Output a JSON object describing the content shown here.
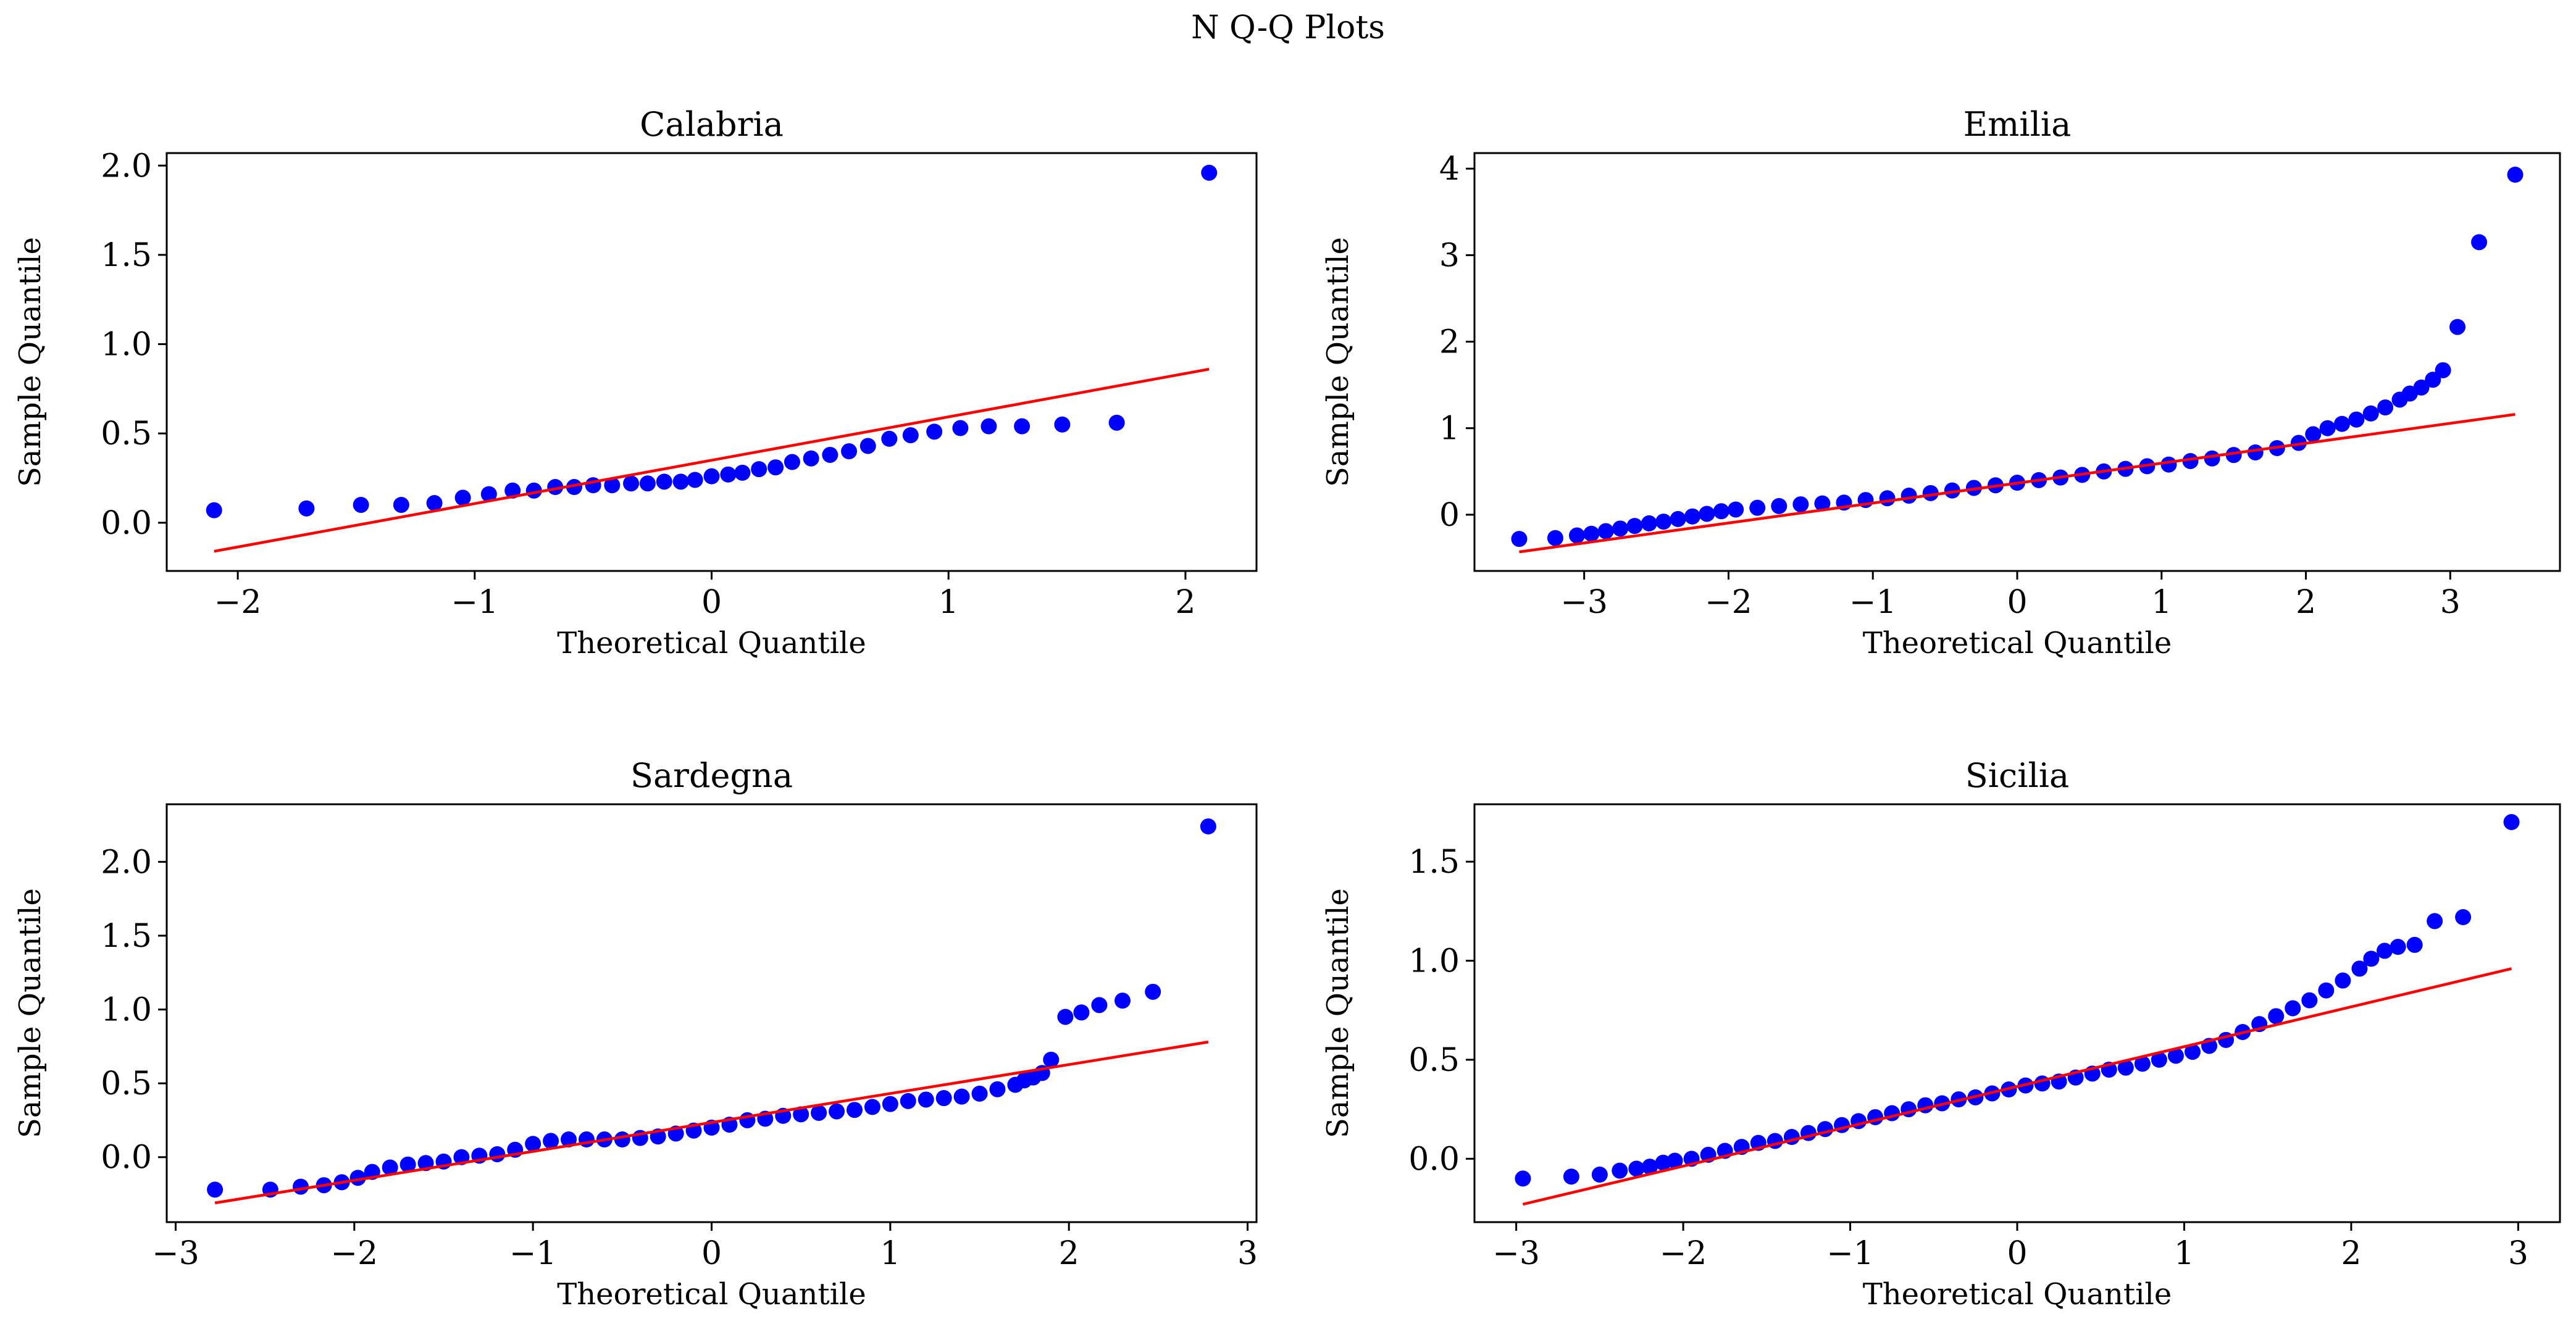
{
  "figure": {
    "title": "N Q-Q Plots",
    "point_color": "#0000ff",
    "line_color": "#ff0000"
  },
  "chart_data": [
    {
      "type": "scatter",
      "title": "Calabria",
      "xlabel": "Theoretical Quantile",
      "ylabel": "Sample Quantile",
      "xlim": [
        -2.3,
        2.3
      ],
      "ylim": [
        -0.27,
        2.07
      ],
      "xticks": [
        -2,
        -1,
        0,
        1,
        2
      ],
      "yticks": [
        0.0,
        0.5,
        1.0,
        1.5,
        2.0
      ],
      "xtick_labels": [
        "−2",
        "−1",
        "0",
        "1",
        "2"
      ],
      "ytick_labels": [
        "0.0",
        "0.5",
        "1.0",
        "1.5",
        "2.0"
      ],
      "reference_line": {
        "x": [
          -2.1,
          2.1
        ],
        "y": [
          -0.16,
          0.86
        ]
      },
      "x": [
        -2.1,
        -1.71,
        -1.48,
        -1.31,
        -1.17,
        -1.05,
        -0.94,
        -0.84,
        -0.75,
        -0.66,
        -0.58,
        -0.5,
        -0.42,
        -0.34,
        -0.27,
        -0.2,
        -0.13,
        -0.07,
        0.0,
        0.07,
        0.13,
        0.2,
        0.27,
        0.34,
        0.42,
        0.5,
        0.58,
        0.66,
        0.75,
        0.84,
        0.94,
        1.05,
        1.17,
        1.31,
        1.48,
        1.71,
        2.1
      ],
      "y": [
        0.07,
        0.08,
        0.1,
        0.1,
        0.11,
        0.14,
        0.16,
        0.18,
        0.18,
        0.2,
        0.2,
        0.21,
        0.21,
        0.22,
        0.22,
        0.23,
        0.23,
        0.24,
        0.26,
        0.27,
        0.28,
        0.3,
        0.31,
        0.34,
        0.36,
        0.38,
        0.4,
        0.43,
        0.47,
        0.49,
        0.51,
        0.53,
        0.54,
        0.54,
        0.55,
        0.56,
        1.96
      ]
    },
    {
      "type": "scatter",
      "title": "Emilia",
      "xlabel": "Theoretical Quantile",
      "ylabel": "Sample Quantile",
      "xlim": [
        -3.76,
        3.76
      ],
      "ylim": [
        -0.65,
        4.18
      ],
      "xticks": [
        -3,
        -2,
        -1,
        0,
        1,
        2,
        3
      ],
      "yticks": [
        0,
        1,
        2,
        3,
        4
      ],
      "xtick_labels": [
        "−3",
        "−2",
        "−1",
        "0",
        "1",
        "2",
        "3"
      ],
      "ytick_labels": [
        "0",
        "1",
        "2",
        "3",
        "4"
      ],
      "reference_line": {
        "x": [
          -3.45,
          3.45
        ],
        "y": [
          -0.43,
          1.16
        ]
      },
      "x": [
        -3.45,
        -3.2,
        -3.05,
        -2.95,
        -2.85,
        -2.75,
        -2.65,
        -2.55,
        -2.45,
        -2.35,
        -2.25,
        -2.15,
        -2.05,
        -1.95,
        -1.8,
        -1.65,
        -1.5,
        -1.35,
        -1.2,
        -1.05,
        -0.9,
        -0.75,
        -0.6,
        -0.45,
        -0.3,
        -0.15,
        0.0,
        0.15,
        0.3,
        0.45,
        0.6,
        0.75,
        0.9,
        1.05,
        1.2,
        1.35,
        1.5,
        1.65,
        1.8,
        1.95,
        2.05,
        2.15,
        2.25,
        2.35,
        2.45,
        2.55,
        2.65,
        2.72,
        2.8,
        2.88,
        2.95,
        3.05,
        3.2,
        3.45
      ],
      "y": [
        -0.28,
        -0.27,
        -0.24,
        -0.22,
        -0.19,
        -0.16,
        -0.13,
        -0.1,
        -0.08,
        -0.05,
        -0.02,
        0.01,
        0.04,
        0.06,
        0.08,
        0.1,
        0.12,
        0.13,
        0.14,
        0.17,
        0.19,
        0.22,
        0.25,
        0.28,
        0.31,
        0.34,
        0.37,
        0.4,
        0.43,
        0.46,
        0.5,
        0.53,
        0.56,
        0.58,
        0.62,
        0.65,
        0.69,
        0.72,
        0.77,
        0.83,
        0.93,
        1.0,
        1.05,
        1.1,
        1.17,
        1.24,
        1.33,
        1.4,
        1.47,
        1.56,
        1.67,
        2.17,
        3.15,
        3.93
      ]
    },
    {
      "type": "scatter",
      "title": "Sardegna",
      "xlabel": "Theoretical Quantile",
      "ylabel": "Sample Quantile",
      "xlim": [
        -3.05,
        3.05
      ],
      "ylim": [
        -0.44,
        2.39
      ],
      "xticks": [
        -3,
        -2,
        -1,
        0,
        1,
        2,
        3
      ],
      "yticks": [
        0.0,
        0.5,
        1.0,
        1.5,
        2.0
      ],
      "xtick_labels": [
        "−3",
        "−2",
        "−1",
        "0",
        "1",
        "2",
        "3"
      ],
      "ytick_labels": [
        "0.0",
        "0.5",
        "1.0",
        "1.5",
        "2.0"
      ],
      "reference_line": {
        "x": [
          -2.78,
          2.78
        ],
        "y": [
          -0.31,
          0.78
        ]
      },
      "x": [
        -2.78,
        -2.47,
        -2.3,
        -2.17,
        -2.07,
        -1.98,
        -1.9,
        -1.8,
        -1.7,
        -1.6,
        -1.5,
        -1.4,
        -1.3,
        -1.2,
        -1.1,
        -1.0,
        -0.9,
        -0.8,
        -0.7,
        -0.6,
        -0.5,
        -0.4,
        -0.3,
        -0.2,
        -0.1,
        0.0,
        0.1,
        0.2,
        0.3,
        0.4,
        0.5,
        0.6,
        0.7,
        0.8,
        0.9,
        1.0,
        1.1,
        1.2,
        1.3,
        1.4,
        1.5,
        1.6,
        1.7,
        1.75,
        1.8,
        1.85,
        1.9,
        1.98,
        2.07,
        2.17,
        2.3,
        2.47,
        2.78
      ],
      "y": [
        -0.22,
        -0.22,
        -0.2,
        -0.19,
        -0.17,
        -0.14,
        -0.1,
        -0.07,
        -0.05,
        -0.04,
        -0.03,
        0.0,
        0.01,
        0.02,
        0.05,
        0.09,
        0.11,
        0.12,
        0.12,
        0.12,
        0.12,
        0.13,
        0.14,
        0.16,
        0.18,
        0.2,
        0.22,
        0.25,
        0.26,
        0.28,
        0.29,
        0.3,
        0.31,
        0.32,
        0.34,
        0.36,
        0.38,
        0.39,
        0.4,
        0.41,
        0.43,
        0.46,
        0.49,
        0.52,
        0.54,
        0.57,
        0.66,
        0.95,
        0.98,
        1.03,
        1.06,
        1.12,
        2.24
      ]
    },
    {
      "type": "scatter",
      "title": "Sicilia",
      "xlabel": "Theoretical Quantile",
      "ylabel": "Sample Quantile",
      "xlim": [
        -3.25,
        3.25
      ],
      "ylim": [
        -0.32,
        1.79
      ],
      "xticks": [
        -3,
        -2,
        -1,
        0,
        1,
        2,
        3
      ],
      "yticks": [
        0.0,
        0.5,
        1.0,
        1.5
      ],
      "xtick_labels": [
        "−3",
        "−2",
        "−1",
        "0",
        "1",
        "2",
        "3"
      ],
      "ytick_labels": [
        "0.0",
        "0.5",
        "1.0",
        "1.5"
      ],
      "reference_line": {
        "x": [
          -2.96,
          2.96
        ],
        "y": [
          -0.23,
          0.96
        ]
      },
      "x": [
        -2.96,
        -2.67,
        -2.5,
        -2.38,
        -2.28,
        -2.2,
        -2.12,
        -2.05,
        -1.95,
        -1.85,
        -1.75,
        -1.65,
        -1.55,
        -1.45,
        -1.35,
        -1.25,
        -1.15,
        -1.05,
        -0.95,
        -0.85,
        -0.75,
        -0.65,
        -0.55,
        -0.45,
        -0.35,
        -0.25,
        -0.15,
        -0.05,
        0.05,
        0.15,
        0.25,
        0.35,
        0.45,
        0.55,
        0.65,
        0.75,
        0.85,
        0.95,
        1.05,
        1.15,
        1.25,
        1.35,
        1.45,
        1.55,
        1.65,
        1.75,
        1.85,
        1.95,
        2.05,
        2.12,
        2.2,
        2.28,
        2.38,
        2.5,
        2.67,
        2.96
      ],
      "y": [
        -0.1,
        -0.09,
        -0.08,
        -0.06,
        -0.05,
        -0.04,
        -0.02,
        -0.01,
        0.0,
        0.02,
        0.04,
        0.06,
        0.08,
        0.09,
        0.11,
        0.13,
        0.15,
        0.17,
        0.19,
        0.21,
        0.23,
        0.25,
        0.27,
        0.28,
        0.3,
        0.31,
        0.33,
        0.35,
        0.37,
        0.38,
        0.39,
        0.41,
        0.43,
        0.45,
        0.46,
        0.48,
        0.5,
        0.52,
        0.54,
        0.57,
        0.6,
        0.64,
        0.68,
        0.72,
        0.76,
        0.8,
        0.85,
        0.9,
        0.96,
        1.01,
        1.05,
        1.07,
        1.08,
        1.2,
        1.22,
        1.7
      ]
    }
  ]
}
